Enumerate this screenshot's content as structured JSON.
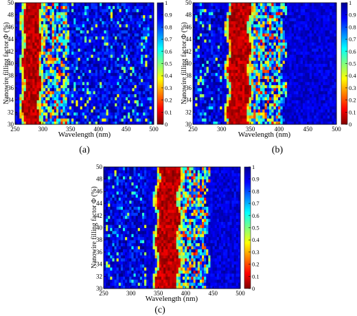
{
  "figure": {
    "colormap": "jet",
    "panel_labels": [
      "(a)",
      "(b)",
      "(c)"
    ]
  },
  "chart_data": [
    {
      "type": "heatmap",
      "panel": "(a)",
      "title": "",
      "xlabel": "Wavelength (nm)",
      "ylabel": "Nanowire filling factor Φ (%)",
      "xlim": [
        250,
        500
      ],
      "ylim": [
        30,
        50
      ],
      "x_ticks": [
        "250",
        "300",
        "350",
        "400",
        "450",
        "500"
      ],
      "y_ticks": [
        "30",
        "32",
        "34",
        "36",
        "38",
        "40",
        "42",
        "44",
        "46",
        "48",
        "50"
      ],
      "colorbar": {
        "range": [
          0,
          1
        ],
        "ticks": [
          "0",
          "0.1",
          "0.2",
          "0.3",
          "0.4",
          "0.5",
          "0.6",
          "0.7",
          "0.8",
          "0.9",
          "1"
        ]
      },
      "high_band_nm": [
        262,
        296
      ],
      "scatter_region_nm": [
        292,
        345
      ],
      "sparse_region_nm": [
        345,
        495
      ]
    },
    {
      "type": "heatmap",
      "panel": "(b)",
      "title": "",
      "xlabel": "Wavelength (nm)",
      "ylabel": "Nanowire filling factor Φ (%)",
      "xlim": [
        250,
        500
      ],
      "ylim": [
        30,
        50
      ],
      "x_ticks": [
        "250",
        "300",
        "350",
        "400",
        "450",
        "500"
      ],
      "y_ticks": [
        "30",
        "32",
        "34",
        "36",
        "38",
        "40",
        "42",
        "44",
        "46",
        "48",
        "50"
      ],
      "colorbar": {
        "range": [
          0,
          1
        ],
        "ticks": [
          "0",
          "0.1",
          "0.2",
          "0.3",
          "0.4",
          "0.5",
          "0.6",
          "0.7",
          "0.8",
          "0.9",
          "1"
        ]
      },
      "high_band_nm": [
        310,
        350
      ],
      "scatter_region_nm": [
        345,
        410
      ],
      "sparse_region_nm": [
        255,
        300
      ]
    },
    {
      "type": "heatmap",
      "panel": "(c)",
      "title": "",
      "xlabel": "Wavelength (nm)",
      "ylabel": "Nanowire filling factor Φ (%)",
      "xlim": [
        250,
        500
      ],
      "ylim": [
        30,
        50
      ],
      "x_ticks": [
        "250",
        "300",
        "350",
        "400",
        "450",
        "500"
      ],
      "y_ticks": [
        "30",
        "32",
        "34",
        "36",
        "38",
        "40",
        "42",
        "44",
        "46",
        "48",
        "50"
      ],
      "colorbar": {
        "range": [
          0,
          1
        ],
        "ticks": [
          "0",
          "0.1",
          "0.2",
          "0.3",
          "0.4",
          "0.5",
          "0.6",
          "0.7",
          "0.8",
          "0.9",
          "1"
        ]
      },
      "high_band_nm": [
        345,
        388
      ],
      "scatter_region_nm": [
        385,
        440
      ],
      "sparse_region_nm": [
        255,
        330
      ]
    }
  ]
}
